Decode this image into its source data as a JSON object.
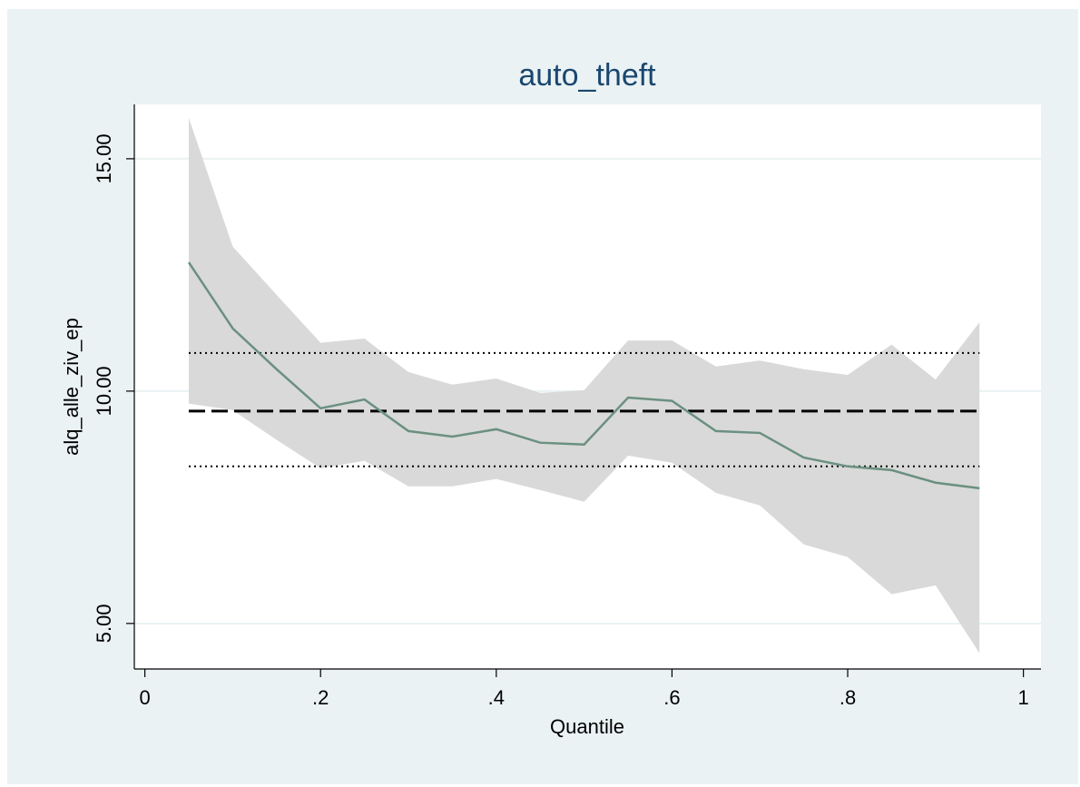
{
  "chart_data": {
    "type": "line",
    "title": "auto_theft",
    "x_label": "Quantile",
    "y_label": "alq_alle_ziv_ep",
    "x": [
      0.05,
      0.1,
      0.15,
      0.2,
      0.25,
      0.3,
      0.35,
      0.4,
      0.45,
      0.5,
      0.55,
      0.6,
      0.65,
      0.7,
      0.75,
      0.8,
      0.85,
      0.9,
      0.95
    ],
    "line": {
      "color": "#6b9080",
      "values": [
        12.77,
        11.35,
        10.47,
        9.63,
        9.82,
        9.14,
        9.02,
        9.18,
        8.89,
        8.85,
        9.86,
        9.79,
        9.14,
        9.1,
        8.57,
        8.38,
        8.3,
        8.03,
        7.91
      ]
    },
    "band": {
      "color": "#d9d9d9",
      "upper": [
        15.88,
        13.11,
        12.07,
        11.04,
        11.13,
        10.41,
        10.14,
        10.27,
        9.96,
        10.02,
        11.09,
        11.09,
        10.53,
        10.66,
        10.47,
        10.35,
        11.0,
        10.25,
        11.48
      ],
      "lower": [
        9.73,
        9.59,
        8.95,
        8.34,
        8.5,
        7.95,
        7.95,
        8.11,
        7.87,
        7.62,
        8.61,
        8.46,
        7.81,
        7.54,
        6.7,
        6.43,
        5.63,
        5.82,
        4.36
      ]
    },
    "reference_lines": [
      {
        "value": 9.57,
        "style": "dashed",
        "color": "#000000"
      },
      {
        "value": 10.82,
        "style": "dotted",
        "color": "#000000"
      },
      {
        "value": 8.38,
        "style": "dotted",
        "color": "#000000"
      }
    ],
    "xlim": [
      -0.012,
      1.02
    ],
    "ylim": [
      4.02,
      16.17
    ],
    "xticks": [
      0,
      {
        "value": 0.2,
        "label": ".2"
      },
      {
        "value": 0.4,
        "label": ".4"
      },
      {
        "value": 0.6,
        "label": ".6"
      },
      {
        "value": 0.8,
        "label": ".8"
      },
      1
    ],
    "yticks": [
      {
        "value": 5,
        "label": "5.00"
      },
      {
        "value": 10,
        "label": "10.00"
      },
      {
        "value": 15,
        "label": "15.00"
      }
    ],
    "grid": true
  }
}
